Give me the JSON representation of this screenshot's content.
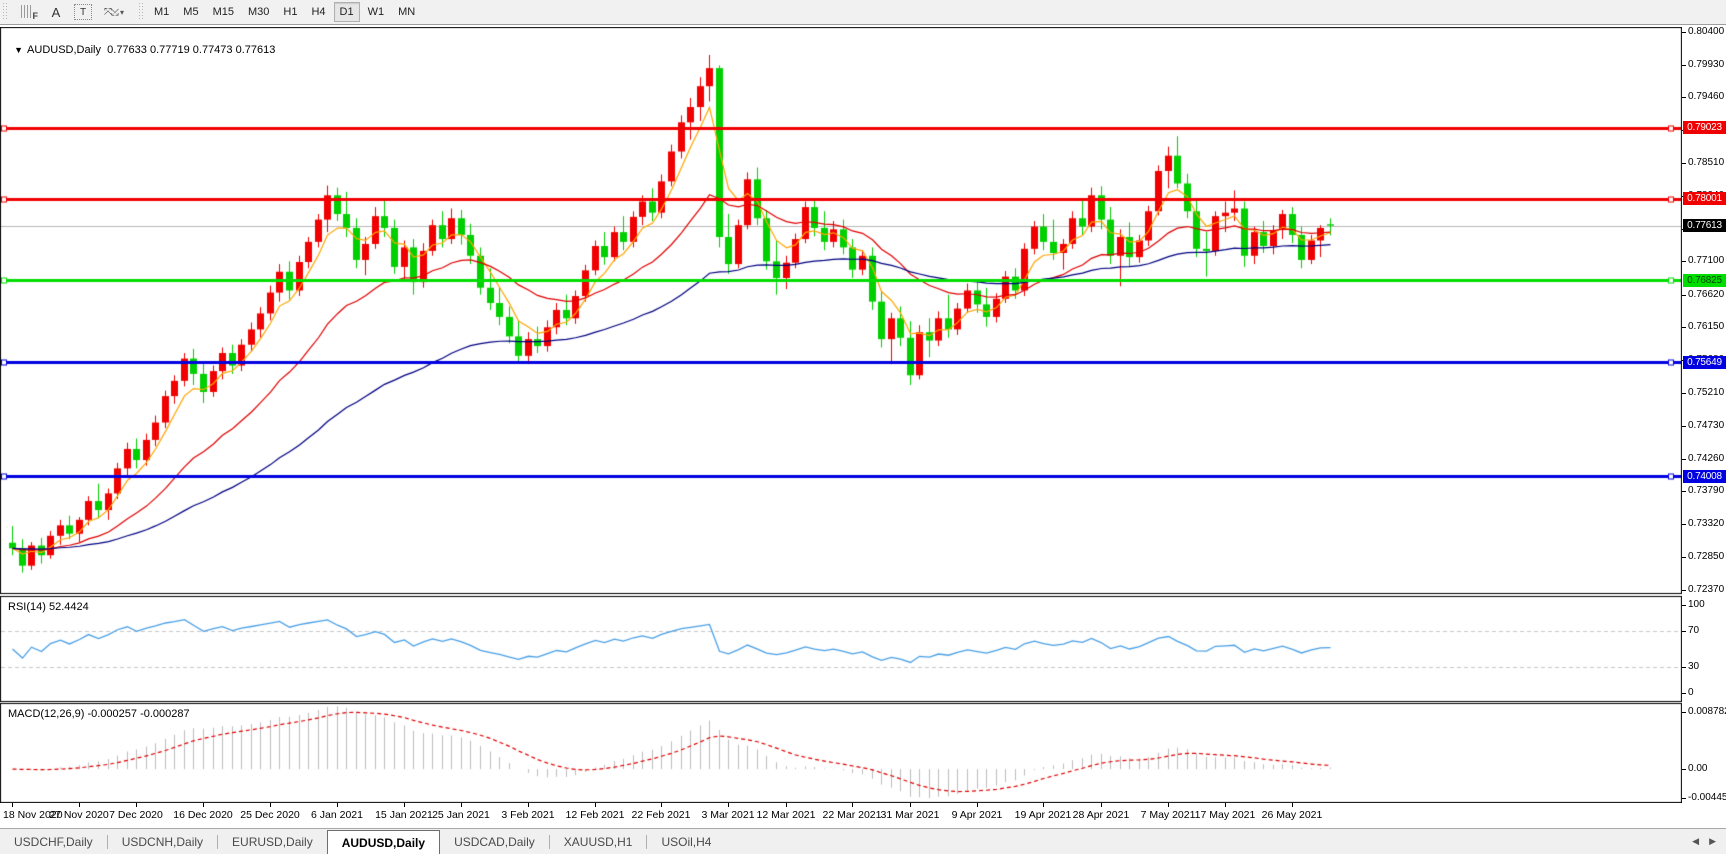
{
  "toolbar": {
    "text_button": "A",
    "textbox_button": "T",
    "timeframes": [
      "M1",
      "M5",
      "M15",
      "M30",
      "H1",
      "H4",
      "D1",
      "W1",
      "MN"
    ],
    "active_timeframe": "D1"
  },
  "header": {
    "symbol": "AUDUSD,Daily",
    "ohlc": "0.77633 0.77719 0.77473 0.77613"
  },
  "price_axis": {
    "ticks": [
      "0.80400",
      "0.79930",
      "0.79460",
      "0.78990",
      "0.78510",
      "0.78040",
      "0.77570",
      "0.77100",
      "0.76620",
      "0.76150",
      "0.75680",
      "0.75210",
      "0.74730",
      "0.74260",
      "0.73790",
      "0.73320",
      "0.72850",
      "0.72370"
    ]
  },
  "levels": [
    {
      "label": "0.79023",
      "price": 0.79023,
      "color": "#f00000",
      "text_color": "#ffffff"
    },
    {
      "label": "0.78001",
      "price": 0.78001,
      "color": "#f00000",
      "text_color": "#ffffff"
    },
    {
      "label": "0.76825",
      "price": 0.76825,
      "color": "#00dd00",
      "text_color": "#004400"
    },
    {
      "label": "0.75649",
      "price": 0.75649,
      "color": "#0000e0",
      "text_color": "#ffffff"
    },
    {
      "label": "0.74008",
      "price": 0.74008,
      "color": "#0000e0",
      "text_color": "#ffffff"
    }
  ],
  "current_price": {
    "label": "0.77613",
    "price": 0.77613,
    "box_color": "#000000",
    "text_color": "#ffffff",
    "line_color": "#b8b8b8"
  },
  "rsi": {
    "label": "RSI(14) 52.4424",
    "period": 14,
    "current": 52.4424,
    "ticks": [
      {
        "label": "100",
        "v": 100
      },
      {
        "label": "70",
        "v": 70
      },
      {
        "label": "30",
        "v": 30
      },
      {
        "label": "0",
        "v": 0
      }
    ],
    "level_lines": [
      70,
      30
    ],
    "line_color": "#4aa0e6"
  },
  "macd": {
    "label": "MACD(12,26,9) -0.000257 -0.000287",
    "params": [
      12,
      26,
      9
    ],
    "current_macd": -0.000257,
    "current_signal": -0.000287,
    "ticks": [
      {
        "label": "0.008782",
        "v": 0.008782
      },
      {
        "label": "0.00",
        "v": 0
      },
      {
        "label": "-0.004451",
        "v": -0.004451
      }
    ],
    "bar_color": "#bdbdbd",
    "signal_color": "#e00000"
  },
  "date_axis": {
    "ticks": [
      {
        "label": "18 Nov 2020",
        "i": 0
      },
      {
        "label": "27 Nov 2020",
        "i": 7
      },
      {
        "label": "7 Dec 2020",
        "i": 13
      },
      {
        "label": "16 Dec 2020",
        "i": 20
      },
      {
        "label": "25 Dec 2020",
        "i": 27
      },
      {
        "label": "6 Jan 2021",
        "i": 34
      },
      {
        "label": "15 Jan 2021",
        "i": 41
      },
      {
        "label": "25 Jan 2021",
        "i": 47
      },
      {
        "label": "3 Feb 2021",
        "i": 54
      },
      {
        "label": "12 Feb 2021",
        "i": 61
      },
      {
        "label": "22 Feb 2021",
        "i": 68
      },
      {
        "label": "3 Mar 2021",
        "i": 75
      },
      {
        "label": "12 Mar 2021",
        "i": 81
      },
      {
        "label": "22 Mar 2021",
        "i": 88
      },
      {
        "label": "31 Mar 2021",
        "i": 94
      },
      {
        "label": "9 Apr 2021",
        "i": 101
      },
      {
        "label": "19 Apr 2021",
        "i": 108
      },
      {
        "label": "28 Apr 2021",
        "i": 114
      },
      {
        "label": "7 May 2021",
        "i": 121
      },
      {
        "label": "17 May 2021",
        "i": 127
      },
      {
        "label": "26 May 2021",
        "i": 134
      }
    ]
  },
  "tabs": [
    {
      "label": "USDCHF,Daily",
      "active": false
    },
    {
      "label": "USDCNH,Daily",
      "active": false
    },
    {
      "label": "EURUSD,Daily",
      "active": false
    },
    {
      "label": "AUDUSD,Daily",
      "active": true
    },
    {
      "label": "USDCAD,Daily",
      "active": false
    },
    {
      "label": "XAUUSD,H1",
      "active": false
    },
    {
      "label": "USOil,H4",
      "active": false
    }
  ],
  "colors": {
    "candle_up": "#f00000",
    "candle_down": "#00d000",
    "ma_fast": "#ffa500",
    "ma_mid": "#e00000",
    "ma_slow": "#000080",
    "grid_dash": "#c8c8c8"
  },
  "chart_data": {
    "type": "candlestick",
    "symbol": "AUDUSD",
    "timeframe": "Daily",
    "ylim": [
      0.7237,
      0.804
    ],
    "ma_overlays": [
      {
        "period": 5,
        "color": "#ffa500"
      },
      {
        "period": 20,
        "color": "#e00000"
      },
      {
        "period": 55,
        "color": "#000080"
      }
    ],
    "candles": [
      [
        0.7305,
        0.7329,
        0.7287,
        0.7297
      ],
      [
        0.7297,
        0.731,
        0.7262,
        0.7272
      ],
      [
        0.7272,
        0.7306,
        0.7266,
        0.7301
      ],
      [
        0.7301,
        0.7312,
        0.7275,
        0.7287
      ],
      [
        0.7287,
        0.7322,
        0.7282,
        0.7315
      ],
      [
        0.7315,
        0.7338,
        0.7302,
        0.733
      ],
      [
        0.733,
        0.7344,
        0.731,
        0.7318
      ],
      [
        0.7318,
        0.7342,
        0.7306,
        0.7338
      ],
      [
        0.7338,
        0.7372,
        0.733,
        0.7365
      ],
      [
        0.7365,
        0.739,
        0.734,
        0.7352
      ],
      [
        0.7352,
        0.7383,
        0.7338,
        0.7376
      ],
      [
        0.7376,
        0.742,
        0.7368,
        0.7412
      ],
      [
        0.7412,
        0.7449,
        0.7402,
        0.744
      ],
      [
        0.744,
        0.7455,
        0.7412,
        0.7424
      ],
      [
        0.7424,
        0.7462,
        0.7416,
        0.7453
      ],
      [
        0.7453,
        0.7488,
        0.7444,
        0.7478
      ],
      [
        0.7478,
        0.7524,
        0.747,
        0.7516
      ],
      [
        0.7516,
        0.7546,
        0.7505,
        0.7538
      ],
      [
        0.7538,
        0.7578,
        0.753,
        0.757
      ],
      [
        0.757,
        0.7584,
        0.7532,
        0.7548
      ],
      [
        0.7548,
        0.7562,
        0.7506,
        0.7522
      ],
      [
        0.7522,
        0.756,
        0.7515,
        0.7552
      ],
      [
        0.7552,
        0.7586,
        0.754,
        0.7578
      ],
      [
        0.7578,
        0.759,
        0.7548,
        0.756
      ],
      [
        0.756,
        0.7598,
        0.7552,
        0.759
      ],
      [
        0.759,
        0.7622,
        0.758,
        0.7612
      ],
      [
        0.7612,
        0.7644,
        0.76,
        0.7635
      ],
      [
        0.7635,
        0.7675,
        0.7625,
        0.7665
      ],
      [
        0.7665,
        0.7706,
        0.7652,
        0.7695
      ],
      [
        0.7695,
        0.771,
        0.7655,
        0.7668
      ],
      [
        0.7668,
        0.7718,
        0.766,
        0.7709
      ],
      [
        0.7709,
        0.7745,
        0.77,
        0.7738
      ],
      [
        0.7738,
        0.7778,
        0.773,
        0.777
      ],
      [
        0.777,
        0.7819,
        0.7752,
        0.7805
      ],
      [
        0.7805,
        0.7816,
        0.7768,
        0.7778
      ],
      [
        0.7778,
        0.781,
        0.7745,
        0.7758
      ],
      [
        0.7758,
        0.7772,
        0.77,
        0.7712
      ],
      [
        0.7712,
        0.7745,
        0.769,
        0.7735
      ],
      [
        0.7735,
        0.7788,
        0.7728,
        0.7775
      ],
      [
        0.7775,
        0.7797,
        0.7745,
        0.7758
      ],
      [
        0.7758,
        0.777,
        0.7692,
        0.7702
      ],
      [
        0.7702,
        0.774,
        0.7682,
        0.773
      ],
      [
        0.773,
        0.7742,
        0.7662,
        0.768
      ],
      [
        0.768,
        0.7736,
        0.7672,
        0.7725
      ],
      [
        0.7725,
        0.777,
        0.7718,
        0.7762
      ],
      [
        0.7762,
        0.7782,
        0.773,
        0.7742
      ],
      [
        0.7742,
        0.7786,
        0.7735,
        0.7772
      ],
      [
        0.7772,
        0.7784,
        0.7734,
        0.7748
      ],
      [
        0.7748,
        0.7764,
        0.7706,
        0.7718
      ],
      [
        0.7718,
        0.773,
        0.7662,
        0.7672
      ],
      [
        0.7672,
        0.77,
        0.764,
        0.765
      ],
      [
        0.765,
        0.7672,
        0.7618,
        0.763
      ],
      [
        0.763,
        0.7645,
        0.7592,
        0.7602
      ],
      [
        0.7602,
        0.7625,
        0.7564,
        0.7574
      ],
      [
        0.7574,
        0.7608,
        0.7562,
        0.7598
      ],
      [
        0.7598,
        0.7616,
        0.7578,
        0.7588
      ],
      [
        0.7588,
        0.7625,
        0.758,
        0.7615
      ],
      [
        0.7615,
        0.765,
        0.7605,
        0.764
      ],
      [
        0.764,
        0.7662,
        0.7618,
        0.7628
      ],
      [
        0.7628,
        0.7668,
        0.762,
        0.766
      ],
      [
        0.766,
        0.7705,
        0.7652,
        0.7697
      ],
      [
        0.7697,
        0.774,
        0.769,
        0.7732
      ],
      [
        0.7732,
        0.7752,
        0.7705,
        0.7716
      ],
      [
        0.7716,
        0.776,
        0.771,
        0.7752
      ],
      [
        0.7752,
        0.7775,
        0.7726,
        0.7738
      ],
      [
        0.7738,
        0.7782,
        0.773,
        0.7774
      ],
      [
        0.7774,
        0.7805,
        0.7762,
        0.7796
      ],
      [
        0.7796,
        0.7815,
        0.7768,
        0.778
      ],
      [
        0.778,
        0.7835,
        0.7772,
        0.7825
      ],
      [
        0.7825,
        0.7878,
        0.7818,
        0.7868
      ],
      [
        0.7868,
        0.792,
        0.7858,
        0.791
      ],
      [
        0.791,
        0.7945,
        0.7885,
        0.7932
      ],
      [
        0.7932,
        0.7975,
        0.7912,
        0.7962
      ],
      [
        0.7962,
        0.8007,
        0.794,
        0.7988
      ],
      [
        0.7988,
        0.7992,
        0.773,
        0.7745
      ],
      [
        0.7745,
        0.7778,
        0.7692,
        0.7706
      ],
      [
        0.7706,
        0.777,
        0.77,
        0.7762
      ],
      [
        0.7762,
        0.7838,
        0.7756,
        0.7828
      ],
      [
        0.7828,
        0.7845,
        0.7762,
        0.7772
      ],
      [
        0.7772,
        0.7784,
        0.7698,
        0.771
      ],
      [
        0.771,
        0.774,
        0.7662,
        0.7686
      ],
      [
        0.7686,
        0.7718,
        0.767,
        0.7708
      ],
      [
        0.7708,
        0.775,
        0.77,
        0.7742
      ],
      [
        0.7742,
        0.7796,
        0.7736,
        0.7788
      ],
      [
        0.7788,
        0.78,
        0.7746,
        0.7758
      ],
      [
        0.7758,
        0.7782,
        0.7726,
        0.7738
      ],
      [
        0.7738,
        0.7768,
        0.773,
        0.7756
      ],
      [
        0.7756,
        0.777,
        0.772,
        0.773
      ],
      [
        0.773,
        0.7742,
        0.7686,
        0.7698
      ],
      [
        0.7698,
        0.7726,
        0.769,
        0.7718
      ],
      [
        0.7718,
        0.773,
        0.764,
        0.7652
      ],
      [
        0.7652,
        0.7668,
        0.7586,
        0.7598
      ],
      [
        0.7598,
        0.7636,
        0.7562,
        0.7628
      ],
      [
        0.7628,
        0.7645,
        0.7588,
        0.76
      ],
      [
        0.76,
        0.7624,
        0.7532,
        0.7546
      ],
      [
        0.7546,
        0.7618,
        0.754,
        0.7608
      ],
      [
        0.7608,
        0.7628,
        0.7572,
        0.7596
      ],
      [
        0.7596,
        0.7638,
        0.7588,
        0.7628
      ],
      [
        0.7628,
        0.7662,
        0.76,
        0.7612
      ],
      [
        0.7612,
        0.765,
        0.7604,
        0.7642
      ],
      [
        0.7642,
        0.7678,
        0.7636,
        0.7668
      ],
      [
        0.7668,
        0.768,
        0.7636,
        0.7648
      ],
      [
        0.7648,
        0.7672,
        0.7616,
        0.763
      ],
      [
        0.763,
        0.7664,
        0.7622,
        0.7656
      ],
      [
        0.7656,
        0.7696,
        0.765,
        0.7688
      ],
      [
        0.7688,
        0.77,
        0.7656,
        0.7668
      ],
      [
        0.7668,
        0.7736,
        0.766,
        0.7728
      ],
      [
        0.7728,
        0.7768,
        0.772,
        0.776
      ],
      [
        0.776,
        0.7778,
        0.7726,
        0.7738
      ],
      [
        0.7738,
        0.777,
        0.7712,
        0.7722
      ],
      [
        0.7722,
        0.7742,
        0.7698,
        0.7735
      ],
      [
        0.7735,
        0.7782,
        0.7728,
        0.7772
      ],
      [
        0.7772,
        0.7798,
        0.7748,
        0.776
      ],
      [
        0.776,
        0.7816,
        0.7752,
        0.7805
      ],
      [
        0.7805,
        0.7818,
        0.7756,
        0.777
      ],
      [
        0.777,
        0.7788,
        0.7706,
        0.7718
      ],
      [
        0.7718,
        0.7756,
        0.7674,
        0.7745
      ],
      [
        0.7745,
        0.7766,
        0.7702,
        0.7716
      ],
      [
        0.7716,
        0.7748,
        0.7708,
        0.774
      ],
      [
        0.774,
        0.779,
        0.7732,
        0.7782
      ],
      [
        0.7782,
        0.7848,
        0.7776,
        0.784
      ],
      [
        0.784,
        0.7875,
        0.7815,
        0.7862
      ],
      [
        0.7862,
        0.789,
        0.7815,
        0.7822
      ],
      [
        0.7822,
        0.7836,
        0.7772,
        0.7782
      ],
      [
        0.7782,
        0.78,
        0.7716,
        0.7728
      ],
      [
        0.7728,
        0.7752,
        0.7688,
        0.7725
      ],
      [
        0.7725,
        0.7782,
        0.7718,
        0.7775
      ],
      [
        0.7775,
        0.7796,
        0.7752,
        0.778
      ],
      [
        0.778,
        0.7812,
        0.7768,
        0.7786
      ],
      [
        0.7786,
        0.7796,
        0.7702,
        0.7718
      ],
      [
        0.7718,
        0.776,
        0.7706,
        0.7752
      ],
      [
        0.7752,
        0.7768,
        0.7722,
        0.7732
      ],
      [
        0.7732,
        0.7762,
        0.772,
        0.7755
      ],
      [
        0.7755,
        0.7784,
        0.7742,
        0.7778
      ],
      [
        0.7778,
        0.7788,
        0.7736,
        0.7748
      ],
      [
        0.7748,
        0.776,
        0.77,
        0.7712
      ],
      [
        0.7712,
        0.7748,
        0.7706,
        0.774
      ],
      [
        0.774,
        0.7762,
        0.7716,
        0.7758
      ],
      [
        0.77633,
        0.77719,
        0.77473,
        0.77613
      ]
    ]
  }
}
